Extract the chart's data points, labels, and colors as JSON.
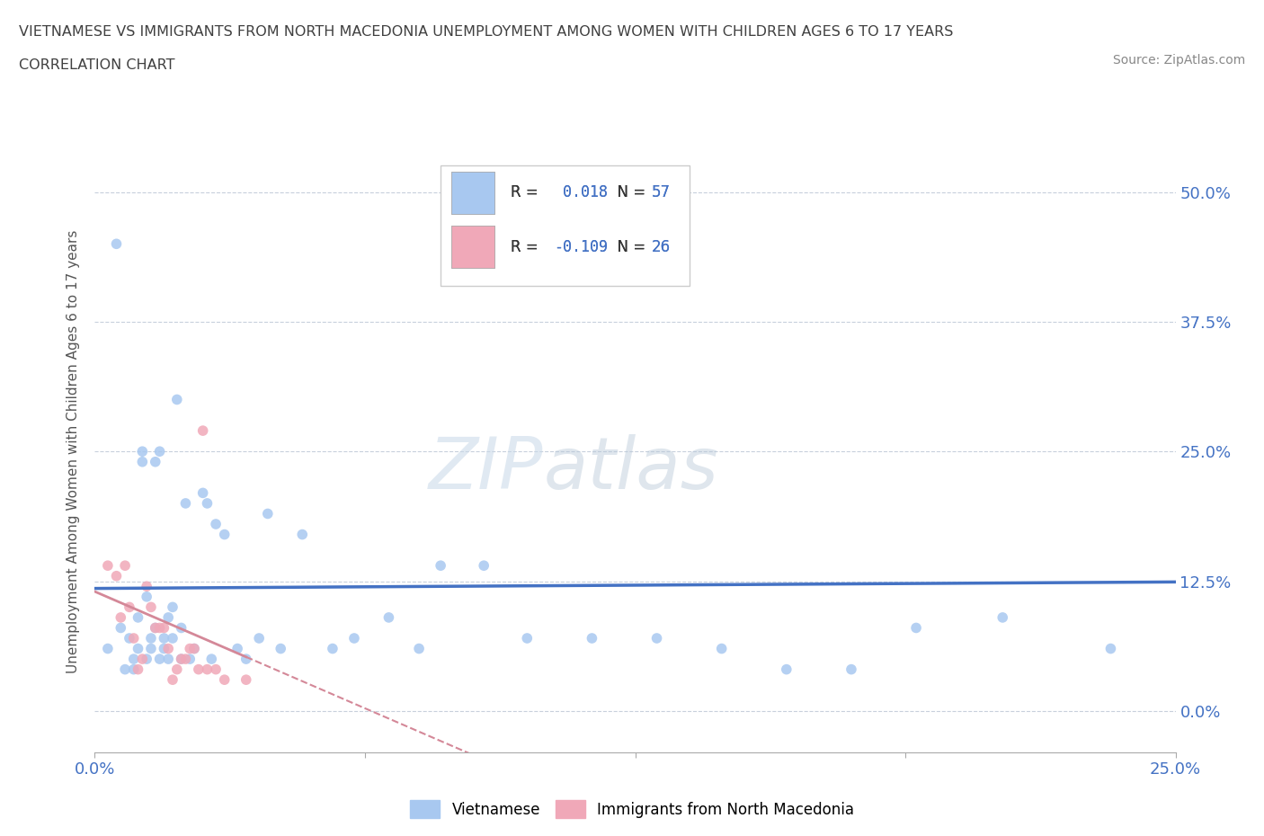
{
  "title_line1": "VIETNAMESE VS IMMIGRANTS FROM NORTH MACEDONIA UNEMPLOYMENT AMONG WOMEN WITH CHILDREN AGES 6 TO 17 YEARS",
  "title_line2": "CORRELATION CHART",
  "source_text": "Source: ZipAtlas.com",
  "ylabel": "Unemployment Among Women with Children Ages 6 to 17 years",
  "xlim": [
    0.0,
    0.25
  ],
  "ylim": [
    -0.04,
    0.54
  ],
  "yticks": [
    0.0,
    0.125,
    0.25,
    0.375,
    0.5
  ],
  "ytick_labels": [
    "0.0%",
    "12.5%",
    "25.0%",
    "37.5%",
    "50.0%"
  ],
  "xticks": [
    0.0,
    0.0625,
    0.125,
    0.1875,
    0.25
  ],
  "xtick_labels": [
    "0.0%",
    "",
    "",
    "",
    "25.0%"
  ],
  "watermark_zip": "ZIP",
  "watermark_atlas": "atlas",
  "color_vietnamese": "#a8c8f0",
  "color_macedonian": "#f0a8b8",
  "color_line_vietnamese": "#4472c4",
  "color_line_macedonian": "#d48898",
  "color_axis_labels": "#4472c4",
  "color_gridline": "#c8d0dc",
  "vietnamese_x": [
    0.003,
    0.005,
    0.006,
    0.007,
    0.008,
    0.009,
    0.009,
    0.01,
    0.01,
    0.011,
    0.011,
    0.012,
    0.012,
    0.013,
    0.013,
    0.014,
    0.014,
    0.015,
    0.015,
    0.016,
    0.016,
    0.017,
    0.017,
    0.018,
    0.018,
    0.019,
    0.02,
    0.02,
    0.021,
    0.022,
    0.023,
    0.025,
    0.026,
    0.027,
    0.028,
    0.03,
    0.033,
    0.035,
    0.038,
    0.04,
    0.043,
    0.048,
    0.055,
    0.06,
    0.068,
    0.075,
    0.08,
    0.09,
    0.1,
    0.115,
    0.13,
    0.145,
    0.16,
    0.175,
    0.19,
    0.21,
    0.235
  ],
  "vietnamese_y": [
    0.06,
    0.45,
    0.08,
    0.04,
    0.07,
    0.04,
    0.05,
    0.06,
    0.09,
    0.25,
    0.24,
    0.11,
    0.05,
    0.06,
    0.07,
    0.08,
    0.24,
    0.25,
    0.05,
    0.07,
    0.06,
    0.09,
    0.05,
    0.07,
    0.1,
    0.3,
    0.05,
    0.08,
    0.2,
    0.05,
    0.06,
    0.21,
    0.2,
    0.05,
    0.18,
    0.17,
    0.06,
    0.05,
    0.07,
    0.19,
    0.06,
    0.17,
    0.06,
    0.07,
    0.09,
    0.06,
    0.14,
    0.14,
    0.07,
    0.07,
    0.07,
    0.06,
    0.04,
    0.04,
    0.08,
    0.09,
    0.06
  ],
  "macedonian_x": [
    0.003,
    0.005,
    0.006,
    0.007,
    0.008,
    0.009,
    0.01,
    0.011,
    0.012,
    0.013,
    0.014,
    0.015,
    0.016,
    0.017,
    0.018,
    0.019,
    0.02,
    0.021,
    0.022,
    0.023,
    0.024,
    0.025,
    0.026,
    0.028,
    0.03,
    0.035
  ],
  "macedonian_y": [
    0.14,
    0.13,
    0.09,
    0.14,
    0.1,
    0.07,
    0.04,
    0.05,
    0.12,
    0.1,
    0.08,
    0.08,
    0.08,
    0.06,
    0.03,
    0.04,
    0.05,
    0.05,
    0.06,
    0.06,
    0.04,
    0.27,
    0.04,
    0.04,
    0.03,
    0.03
  ]
}
